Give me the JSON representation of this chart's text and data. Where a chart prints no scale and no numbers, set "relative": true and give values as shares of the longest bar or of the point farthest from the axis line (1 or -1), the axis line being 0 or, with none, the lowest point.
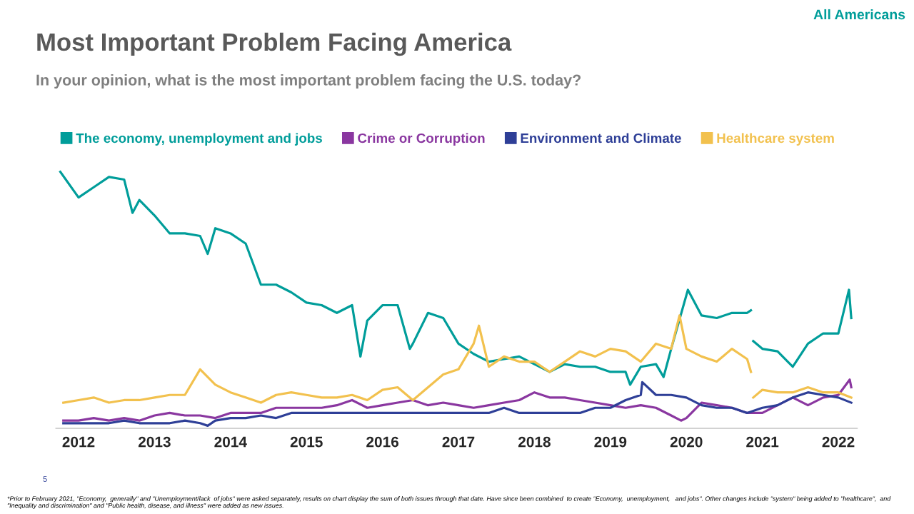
{
  "chart_data": {
    "type": "line",
    "title": "Most Important Problem Facing America",
    "subtitle": "In your opinion, what is the most important problem facing the U.S. today?",
    "relative": true,
    "legend": "top left",
    "grid": false,
    "marker": "none",
    "line_style": "solid",
    "xlim": [
      2011.7,
      2022.25
    ],
    "xticks": [
      2012,
      2013,
      2014,
      2015,
      2016,
      2017,
      2018,
      2019,
      2020,
      2021,
      2022
    ],
    "annotations": [
      "All Americans",
      "5",
      "*Prior to February 2021, \"Economy,  generally\" and \"Unemployment/lack  of jobs\" were asked separately, results on chart display the sum of both issues through that date. Have since been combined  to create \"Economy,  unemployment,   and jobs\". Other changes include \"system\" being added to \"healthcare\",  and  \"Inequality and discrimination\" and \"Public health, disease, and illness\" were added as new issues."
    ],
    "series": [
      {
        "name": "The economy, unemployment and jobs",
        "color": "#009d9a",
        "x": [
          2011.76,
          2012.0,
          2012.2,
          2012.4,
          2012.6,
          2012.71,
          2012.8,
          2013.0,
          2013.2,
          2013.4,
          2013.6,
          2013.7,
          2013.8,
          2014.0,
          2014.2,
          2014.4,
          2014.6,
          2014.8,
          2015.0,
          2015.2,
          2015.4,
          2015.6,
          2015.71,
          2015.8,
          2016.0,
          2016.2,
          2016.36,
          2016.4,
          2016.6,
          2016.8,
          2017.0,
          2017.2,
          2017.4,
          2017.6,
          2017.8,
          2018.0,
          2018.2,
          2018.4,
          2018.6,
          2018.8,
          2019.0,
          2019.2,
          2019.26,
          2019.4,
          2019.6,
          2019.7,
          2019.8,
          2020.02,
          2020.2,
          2020.4,
          2020.6,
          2020.8,
          2020.85,
          2020.86,
          2020.88,
          2021.0,
          2021.2,
          2021.4,
          2021.6,
          2021.8,
          2022.0,
          2022.14,
          2022.17
        ],
        "values": [
          1.0,
          0.9,
          0.94,
          0.98,
          0.97,
          0.84,
          0.89,
          0.83,
          0.76,
          0.76,
          0.75,
          0.68,
          0.78,
          0.76,
          0.72,
          0.56,
          0.56,
          0.53,
          0.49,
          0.48,
          0.45,
          0.48,
          0.28,
          0.42,
          0.48,
          0.48,
          0.31,
          0.33,
          0.45,
          0.43,
          0.33,
          0.29,
          0.26,
          0.27,
          0.28,
          0.25,
          0.22,
          0.25,
          0.24,
          0.24,
          0.22,
          0.22,
          0.17,
          0.24,
          0.25,
          0.2,
          0.31,
          0.54,
          0.44,
          0.43,
          0.45,
          0.45,
          0.46,
          null,
          0.34,
          0.31,
          0.3,
          0.24,
          0.33,
          0.37,
          0.37,
          0.54,
          0.43
        ]
      },
      {
        "name": "Crime or Corruption",
        "color": "#8a37a0",
        "x": [
          2011.8,
          2012.0,
          2012.2,
          2012.4,
          2012.6,
          2012.8,
          2013.0,
          2013.2,
          2013.4,
          2013.6,
          2013.8,
          2014.0,
          2014.2,
          2014.4,
          2014.6,
          2014.8,
          2015.0,
          2015.2,
          2015.4,
          2015.6,
          2015.8,
          2016.0,
          2016.2,
          2016.4,
          2016.6,
          2016.8,
          2017.0,
          2017.2,
          2017.4,
          2017.6,
          2017.8,
          2018.0,
          2018.2,
          2018.4,
          2018.6,
          2018.8,
          2019.0,
          2019.2,
          2019.4,
          2019.6,
          2019.8,
          2019.93,
          2020.0,
          2020.2,
          2020.4,
          2020.6,
          2020.8,
          2021.0,
          2021.2,
          2021.4,
          2021.6,
          2021.8,
          2022.0,
          2022.15,
          2022.17
        ],
        "values": [
          0.03,
          0.03,
          0.04,
          0.03,
          0.04,
          0.03,
          0.05,
          0.06,
          0.05,
          0.05,
          0.04,
          0.06,
          0.06,
          0.06,
          0.08,
          0.08,
          0.08,
          0.08,
          0.09,
          0.11,
          0.08,
          0.09,
          0.1,
          0.11,
          0.09,
          0.1,
          0.09,
          0.08,
          0.09,
          0.1,
          0.11,
          0.14,
          0.12,
          0.12,
          0.11,
          0.1,
          0.09,
          0.08,
          0.09,
          0.08,
          0.05,
          0.03,
          0.04,
          0.1,
          0.09,
          0.08,
          0.06,
          0.06,
          0.09,
          0.12,
          0.09,
          0.12,
          0.13,
          0.19,
          0.16
        ]
      },
      {
        "name": "Environment and Climate",
        "color": "#2e3f97",
        "x": [
          2011.8,
          2012.0,
          2012.2,
          2012.4,
          2012.6,
          2012.8,
          2013.0,
          2013.2,
          2013.4,
          2013.6,
          2013.7,
          2013.8,
          2014.0,
          2014.2,
          2014.4,
          2014.6,
          2014.8,
          2015.0,
          2015.2,
          2015.4,
          2015.6,
          2015.8,
          2016.0,
          2016.2,
          2016.4,
          2016.6,
          2016.8,
          2017.0,
          2017.2,
          2017.4,
          2017.6,
          2017.8,
          2018.0,
          2018.2,
          2018.4,
          2018.6,
          2018.8,
          2019.0,
          2019.2,
          2019.4,
          2019.42,
          2019.6,
          2019.8,
          2020.0,
          2020.2,
          2020.4,
          2020.6,
          2020.8,
          2021.0,
          2021.2,
          2021.4,
          2021.6,
          2021.8,
          2022.0,
          2022.17
        ],
        "values": [
          0.02,
          0.02,
          0.02,
          0.02,
          0.03,
          0.02,
          0.02,
          0.02,
          0.03,
          0.02,
          0.01,
          0.03,
          0.04,
          0.04,
          0.05,
          0.04,
          0.06,
          0.06,
          0.06,
          0.06,
          0.06,
          0.06,
          0.06,
          0.06,
          0.06,
          0.06,
          0.06,
          0.06,
          0.06,
          0.06,
          0.08,
          0.06,
          0.06,
          0.06,
          0.06,
          0.06,
          0.08,
          0.08,
          0.11,
          0.13,
          0.18,
          0.13,
          0.13,
          0.12,
          0.09,
          0.08,
          0.08,
          0.06,
          0.08,
          0.09,
          0.12,
          0.14,
          0.13,
          0.12,
          0.1
        ]
      },
      {
        "name": "Healthcare system",
        "color": "#f2c14e",
        "x": [
          2011.8,
          2012.0,
          2012.2,
          2012.4,
          2012.6,
          2012.8,
          2013.0,
          2013.2,
          2013.4,
          2013.6,
          2013.8,
          2014.0,
          2014.2,
          2014.4,
          2014.6,
          2014.8,
          2015.0,
          2015.2,
          2015.4,
          2015.6,
          2015.8,
          2016.0,
          2016.2,
          2016.4,
          2016.6,
          2016.8,
          2017.0,
          2017.2,
          2017.27,
          2017.4,
          2017.6,
          2017.8,
          2018.0,
          2018.2,
          2018.4,
          2018.6,
          2018.8,
          2019.0,
          2019.2,
          2019.4,
          2019.6,
          2019.8,
          2019.91,
          2020.0,
          2020.2,
          2020.4,
          2020.6,
          2020.8,
          2020.85,
          2020.86,
          2020.88,
          2021.0,
          2021.2,
          2021.4,
          2021.6,
          2021.8,
          2022.0,
          2022.17
        ],
        "values": [
          0.1,
          0.11,
          0.12,
          0.1,
          0.11,
          0.11,
          0.12,
          0.13,
          0.13,
          0.23,
          0.17,
          0.14,
          0.12,
          0.1,
          0.13,
          0.14,
          0.13,
          0.12,
          0.12,
          0.13,
          0.11,
          0.15,
          0.16,
          0.11,
          0.16,
          0.21,
          0.23,
          0.33,
          0.4,
          0.24,
          0.28,
          0.26,
          0.26,
          0.22,
          0.26,
          0.3,
          0.28,
          0.31,
          0.3,
          0.26,
          0.33,
          0.31,
          0.44,
          0.31,
          0.28,
          0.26,
          0.31,
          0.27,
          0.22,
          null,
          0.12,
          0.15,
          0.14,
          0.14,
          0.16,
          0.14,
          0.14,
          0.12
        ]
      }
    ]
  }
}
